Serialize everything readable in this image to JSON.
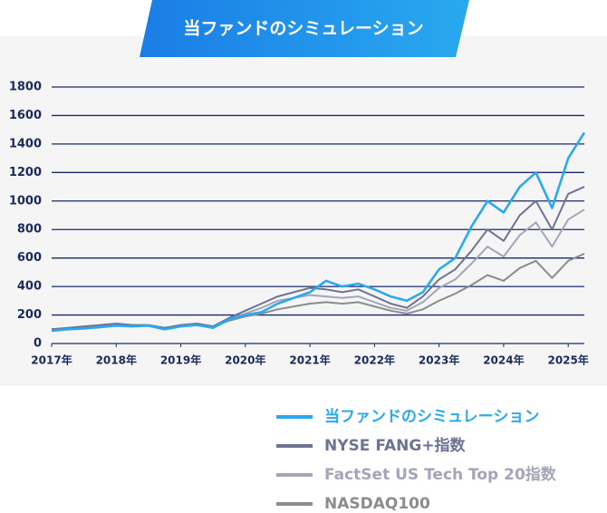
{
  "chart_data": {
    "type": "line",
    "title": "当ファンドのシミュレーション",
    "x": [
      2017,
      2017.25,
      2017.5,
      2017.75,
      2018,
      2018.25,
      2018.5,
      2018.75,
      2019,
      2019.25,
      2019.5,
      2019.75,
      2020,
      2020.25,
      2020.5,
      2020.75,
      2021,
      2021.25,
      2021.5,
      2021.75,
      2022,
      2022.25,
      2022.5,
      2022.75,
      2023,
      2023.25,
      2023.5,
      2023.75,
      2024,
      2024.25,
      2024.5,
      2024.75,
      2025,
      2025.25
    ],
    "series": [
      {
        "name": "当ファンドのシミュレーション",
        "color": "#29a9ef",
        "values": [
          90,
          100,
          105,
          115,
          125,
          120,
          125,
          100,
          120,
          130,
          110,
          170,
          200,
          220,
          280,
          320,
          360,
          440,
          400,
          420,
          380,
          330,
          300,
          360,
          520,
          600,
          820,
          1000,
          920,
          1100,
          1200,
          950,
          1300,
          1480
        ]
      },
      {
        "name": "NYSE FANG+指数",
        "color": "#6e7393",
        "values": [
          100,
          110,
          120,
          130,
          140,
          130,
          130,
          110,
          130,
          140,
          120,
          180,
          230,
          280,
          330,
          360,
          390,
          380,
          360,
          380,
          330,
          280,
          250,
          330,
          450,
          520,
          650,
          800,
          720,
          900,
          1000,
          800,
          1050,
          1100
        ]
      },
      {
        "name": "FactSet US Tech Top 20指数",
        "color": "#a3a5b8",
        "values": [
          100,
          105,
          115,
          125,
          135,
          125,
          125,
          110,
          125,
          135,
          120,
          170,
          210,
          250,
          300,
          320,
          340,
          330,
          320,
          330,
          290,
          250,
          230,
          290,
          390,
          450,
          560,
          680,
          610,
          760,
          850,
          680,
          870,
          940
        ]
      },
      {
        "name": "NASDAQ100",
        "color": "#8c8c8c",
        "values": [
          100,
          105,
          115,
          125,
          130,
          125,
          125,
          110,
          120,
          130,
          120,
          160,
          190,
          210,
          240,
          260,
          280,
          290,
          280,
          290,
          260,
          230,
          210,
          240,
          300,
          350,
          410,
          480,
          440,
          530,
          580,
          460,
          580,
          630
        ]
      }
    ],
    "xlim": [
      2017,
      2025.25
    ],
    "xticks": [
      {
        "value": 2017,
        "label": "2017年"
      },
      {
        "value": 2018,
        "label": "2018年"
      },
      {
        "value": 2019,
        "label": "2019年"
      },
      {
        "value": 2020,
        "label": "2020年"
      },
      {
        "value": 2021,
        "label": "2021年"
      },
      {
        "value": 2022,
        "label": "2022年"
      },
      {
        "value": 2023,
        "label": "2023年"
      },
      {
        "value": 2024,
        "label": "2024年"
      },
      {
        "value": 2025,
        "label": "2025年"
      }
    ],
    "ylim": [
      0,
      1800
    ],
    "yticks": [
      0,
      200,
      400,
      600,
      800,
      1000,
      1200,
      1400,
      1600,
      1800
    ],
    "grid": true
  }
}
